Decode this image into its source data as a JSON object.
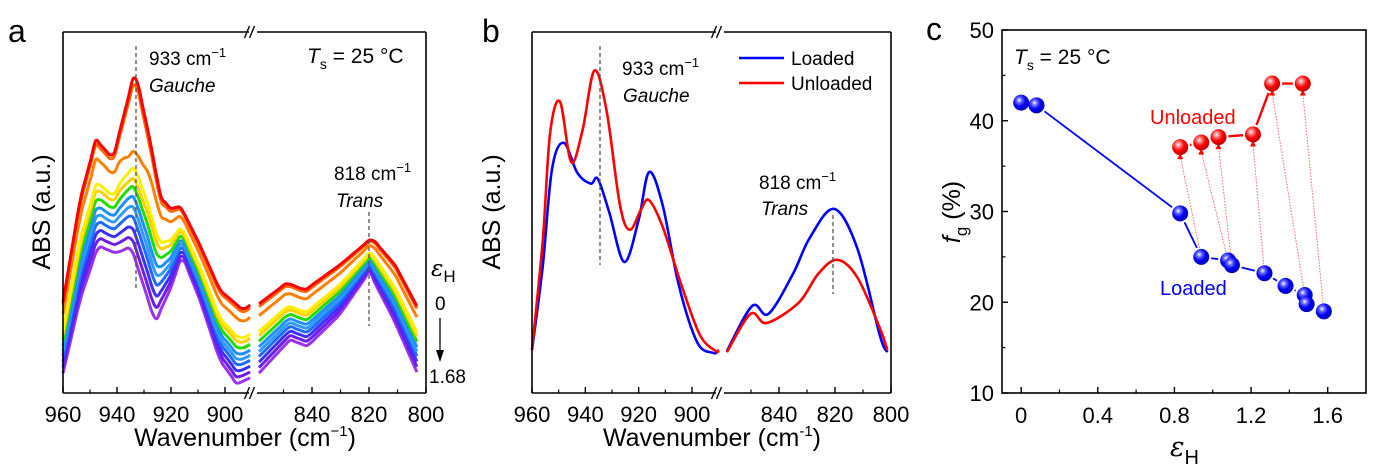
{
  "chart_data": [
    {
      "panel": "a",
      "type": "line",
      "title": "",
      "xlabel": "Wavenumber (cm⁻¹)",
      "ylabel": "ABS (a.u.)",
      "x_reversed": true,
      "x_broken": true,
      "x_segments": [
        [
          960,
          890
        ],
        [
          860,
          800
        ]
      ],
      "xticks": [
        960,
        940,
        920,
        900,
        840,
        820,
        800
      ],
      "xlim": [
        960,
        800
      ],
      "ylim": [
        0,
        1
      ],
      "annotations": {
        "gauche_peak": "933 cm⁻¹",
        "gauche_label": "Gauche",
        "gauche_x": 933,
        "trans_peak": "818 cm⁻¹",
        "trans_label": "Trans",
        "trans_x": 819.5,
        "temperature_symbol": "T",
        "temperature_sub": "s",
        "temperature_value": " = 25 °C",
        "strain_symbol": "ε",
        "strain_sub": "H",
        "strain_start": "0",
        "strain_end": "1.68"
      },
      "shapes": {
        "top_left": [
          [
            960,
            0.252
          ],
          [
            953.7,
            0.535
          ],
          [
            947.8,
            0.701
          ],
          [
            941.5,
            0.651
          ],
          [
            933.3,
            0.892
          ],
          [
            927.8,
            0.701
          ],
          [
            924,
            0.546
          ],
          [
            920.4,
            0.512
          ],
          [
            916.3,
            0.515
          ],
          [
            909.3,
            0.41
          ],
          [
            901.9,
            0.285
          ],
          [
            893.3,
            0.23
          ],
          [
            890.7,
            0.244
          ]
        ],
        "top_right": [
          [
            858.6,
            0.247
          ],
          [
            848.8,
            0.305
          ],
          [
            842.5,
            0.285
          ],
          [
            830.2,
            0.355
          ],
          [
            819,
            0.429
          ],
          [
            810.9,
            0.355
          ],
          [
            803.2,
            0.241
          ]
        ],
        "bottom_left": [
          [
            960,
            0.055
          ],
          [
            953.7,
            0.258
          ],
          [
            947,
            0.407
          ],
          [
            940.4,
            0.388
          ],
          [
            934.8,
            0.404
          ],
          [
            929.6,
            0.285
          ],
          [
            925.9,
            0.197
          ],
          [
            920.4,
            0.285
          ],
          [
            915.9,
            0.38
          ],
          [
            909.3,
            0.258
          ],
          [
            901.9,
            0.091
          ],
          [
            895.6,
            0.025
          ],
          [
            890.7,
            0.042
          ]
        ],
        "bottom_right": [
          [
            858.6,
            0.055
          ],
          [
            847.7,
            0.147
          ],
          [
            841.4,
            0.13
          ],
          [
            830.2,
            0.216
          ],
          [
            819.6,
            0.335
          ],
          [
            810.9,
            0.202
          ],
          [
            802.8,
            0.058
          ]
        ]
      },
      "series": [
        {
          "name": "eps_H step 1",
          "color": "#ff0000",
          "blend": 0.0,
          "gauche_boost": 0.0
        },
        {
          "name": "eps_H step 2",
          "color": "#ff6a00",
          "blend": 0.04,
          "gauche_boost": -0.0
        },
        {
          "name": "eps_H step 3",
          "color": "#ff7f00",
          "blend": 0.17,
          "gauche_boost": -0.22
        },
        {
          "name": "eps_H step 4",
          "color": "#ffee00",
          "blend": 0.4,
          "gauche_boost": -0.1
        },
        {
          "name": "eps_H step 5",
          "color": "#ffd000",
          "blend": 0.46,
          "gauche_boost": -0.1
        },
        {
          "name": "eps_H step 6",
          "color": "#22dd00",
          "blend": 0.54,
          "gauche_boost": -0.07
        },
        {
          "name": "eps_H step 7",
          "color": "#1e90ff",
          "blend": 0.62,
          "gauche_boost": -0.05
        },
        {
          "name": "eps_H step 8",
          "color": "#2f9aff",
          "blend": 0.69,
          "gauche_boost": -0.04
        },
        {
          "name": "eps_H step 9",
          "color": "#1f6bff",
          "blend": 0.76,
          "gauche_boost": -0.03
        },
        {
          "name": "eps_H step 10",
          "color": "#3f2fff",
          "blend": 0.84,
          "gauche_boost": -0.02
        },
        {
          "name": "eps_H step 11",
          "color": "#6a1fe6",
          "blend": 0.92,
          "gauche_boost": -0.01
        },
        {
          "name": "eps_H step 12",
          "color": "#9933ee",
          "blend": 1.0,
          "gauche_boost": 0.0
        }
      ]
    },
    {
      "panel": "b",
      "type": "line",
      "title": "",
      "xlabel": "Wavenumber (cm⁻¹)",
      "ylabel": "ABS (a.u.)",
      "x_reversed": true,
      "x_broken": true,
      "x_segments": [
        [
          960,
          890
        ],
        [
          860,
          800
        ]
      ],
      "xticks": [
        960,
        940,
        920,
        900,
        840,
        820,
        800
      ],
      "xlim": [
        960,
        800
      ],
      "ylim": [
        0,
        1
      ],
      "legend_position": "top-right",
      "annotations": {
        "gauche_peak": "933 cm⁻¹",
        "gauche_label": "Gauche",
        "gauche_x": 933,
        "trans_peak": "818 cm⁻¹",
        "trans_label": "Trans",
        "trans_x": 819.5
      },
      "series": [
        {
          "name": "Loaded",
          "color": "#0000ff",
          "left": [
            [
              960,
              0.119
            ],
            [
              956,
              0.35
            ],
            [
              952.5,
              0.62
            ],
            [
              948.1,
              0.693
            ],
            [
              943,
              0.61
            ],
            [
              938,
              0.58
            ],
            [
              935.3,
              0.593
            ],
            [
              931,
              0.5
            ],
            [
              925.4,
              0.363
            ],
            [
              920,
              0.48
            ],
            [
              916.1,
              0.612
            ],
            [
              911,
              0.52
            ],
            [
              905,
              0.3
            ],
            [
              898,
              0.14
            ],
            [
              892,
              0.111
            ],
            [
              890.5,
              0.115
            ]
          ],
          "right": [
            [
              858.6,
              0.116
            ],
            [
              849.6,
              0.241
            ],
            [
              843.8,
              0.219
            ],
            [
              835,
              0.33
            ],
            [
              829,
              0.43
            ],
            [
              820.3,
              0.51
            ],
            [
              812,
              0.4
            ],
            [
              804,
              0.16
            ],
            [
              801.3,
              0.113
            ]
          ]
        },
        {
          "name": "Unloaded",
          "color": "#ff0000",
          "left": [
            [
              960,
              0.119
            ],
            [
              956,
              0.42
            ],
            [
              953.2,
              0.72
            ],
            [
              949.5,
              0.807
            ],
            [
              945.3,
              0.64
            ],
            [
              941,
              0.73
            ],
            [
              936.6,
              0.893
            ],
            [
              932,
              0.78
            ],
            [
              927,
              0.52
            ],
            [
              923.3,
              0.452
            ],
            [
              919,
              0.51
            ],
            [
              916.1,
              0.534
            ],
            [
              911,
              0.46
            ],
            [
              904,
              0.3
            ],
            [
              897,
              0.16
            ],
            [
              891,
              0.116
            ],
            [
              890,
              0.12
            ]
          ],
          "right": [
            [
              858.6,
              0.113
            ],
            [
              850.2,
              0.219
            ],
            [
              844.4,
              0.194
            ],
            [
              833,
              0.25
            ],
            [
              826,
              0.33
            ],
            [
              819.2,
              0.369
            ],
            [
              812,
              0.32
            ],
            [
              804,
              0.18
            ],
            [
              801.3,
              0.119
            ]
          ]
        }
      ]
    },
    {
      "panel": "c",
      "type": "scatter",
      "title": "",
      "xlabel": "εH",
      "xlabel_symbol": "ε",
      "xlabel_sub": "H",
      "ylabel_symbol": "f",
      "ylabel_sub": "g",
      "ylabel_rest": " (%)",
      "xlim": [
        -0.1,
        1.8
      ],
      "ylim": [
        10,
        50
      ],
      "xticks": [
        0,
        0.4,
        0.8,
        1.2,
        1.6
      ],
      "xtick_labels": [
        "0",
        "0.4",
        "0.8",
        "1.2",
        "1.6"
      ],
      "yticks": [
        10,
        20,
        30,
        40,
        50
      ],
      "ytick_labels": [
        "10",
        "20",
        "30",
        "40",
        "50"
      ],
      "annotation_temperature": {
        "symbol": "T",
        "sub": "s",
        "value": " = 25 °C"
      },
      "series": [
        {
          "name": "Loaded",
          "color": "#0000ff",
          "x": [
            0,
            0.08,
            0.83,
            0.94,
            1.08,
            1.1,
            1.27,
            1.38,
            1.48,
            1.49,
            1.58
          ],
          "y": [
            42.0,
            41.7,
            29.8,
            25.0,
            24.6,
            24.1,
            23.2,
            21.8,
            20.8,
            19.8,
            19.0
          ]
        },
        {
          "name": "Unloaded",
          "color": "#ff0000",
          "x": [
            0.83,
            0.94,
            1.03,
            1.21,
            1.31,
            1.47
          ],
          "y": [
            37.1,
            37.6,
            38.2,
            38.5,
            44.1,
            44.1
          ]
        }
      ],
      "connectors": [
        {
          "from": [
            0.94,
            25.0
          ],
          "to": [
            0.83,
            37.1
          ]
        },
        {
          "from": [
            1.08,
            24.6
          ],
          "to": [
            0.94,
            37.6
          ]
        },
        {
          "from": [
            1.1,
            24.1
          ],
          "to": [
            1.03,
            38.2
          ]
        },
        {
          "from": [
            1.27,
            23.2
          ],
          "to": [
            1.21,
            38.5
          ]
        },
        {
          "from": [
            1.48,
            20.8
          ],
          "to": [
            1.31,
            44.1
          ]
        },
        {
          "from": [
            1.58,
            19.0
          ],
          "to": [
            1.47,
            44.1
          ]
        }
      ],
      "connector_color": "#ff6666"
    }
  ],
  "panels": {
    "a": {
      "letter": "a"
    },
    "b": {
      "letter": "b"
    },
    "c": {
      "letter": "c"
    }
  },
  "axis_titles": {
    "a_y": "ABS (a.u.)",
    "b_y": "ABS (a.u.)",
    "a_x_main": "Wavenumber (cm",
    "a_x_sup": "−1",
    "a_x_close": ")",
    "b_x_main": "Wavenumber (cm",
    "b_x_sup": "-1",
    "b_x_close": ")"
  },
  "labels": {
    "gauche_wn": "933 cm",
    "trans_wn": "818 cm",
    "sup_minus_one": "−1",
    "gauche": "Gauche",
    "trans": "Trans",
    "ts_T": "T",
    "ts_s": "s",
    "ts_value": " = 25 °C",
    "eps": "ε",
    "eps_sub": "H",
    "eps_start": "0",
    "eps_end": "1.68",
    "legend_loaded": "Loaded",
    "legend_unloaded": "Unloaded",
    "c_unloaded": "Unloaded",
    "c_loaded": "Loaded",
    "c_y_f": "f",
    "c_y_g": "g",
    "c_y_rest": " (%)",
    "break_mark": "//"
  }
}
